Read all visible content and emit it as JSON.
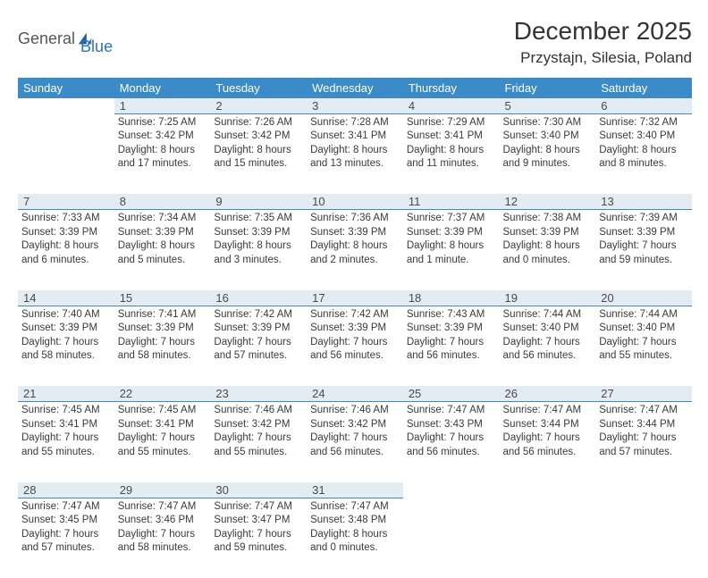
{
  "logo": {
    "part1": "General",
    "part2": "Blue"
  },
  "title": "December 2025",
  "location": "Przystajn, Silesia, Poland",
  "colors": {
    "header_bg": "#3b8bc8",
    "header_text": "#ffffff",
    "daynum_bg": "#e4ecf3",
    "border": "#3b8bc8",
    "logo_accent": "#2d73b8"
  },
  "weekdays": [
    "Sunday",
    "Monday",
    "Tuesday",
    "Wednesday",
    "Thursday",
    "Friday",
    "Saturday"
  ],
  "weeks": [
    {
      "nums": [
        "",
        "1",
        "2",
        "3",
        "4",
        "5",
        "6"
      ],
      "cells": [
        "",
        "Sunrise: 7:25 AM\nSunset: 3:42 PM\nDaylight: 8 hours and 17 minutes.",
        "Sunrise: 7:26 AM\nSunset: 3:42 PM\nDaylight: 8 hours and 15 minutes.",
        "Sunrise: 7:28 AM\nSunset: 3:41 PM\nDaylight: 8 hours and 13 minutes.",
        "Sunrise: 7:29 AM\nSunset: 3:41 PM\nDaylight: 8 hours and 11 minutes.",
        "Sunrise: 7:30 AM\nSunset: 3:40 PM\nDaylight: 8 hours and 9 minutes.",
        "Sunrise: 7:32 AM\nSunset: 3:40 PM\nDaylight: 8 hours and 8 minutes."
      ]
    },
    {
      "nums": [
        "7",
        "8",
        "9",
        "10",
        "11",
        "12",
        "13"
      ],
      "cells": [
        "Sunrise: 7:33 AM\nSunset: 3:39 PM\nDaylight: 8 hours and 6 minutes.",
        "Sunrise: 7:34 AM\nSunset: 3:39 PM\nDaylight: 8 hours and 5 minutes.",
        "Sunrise: 7:35 AM\nSunset: 3:39 PM\nDaylight: 8 hours and 3 minutes.",
        "Sunrise: 7:36 AM\nSunset: 3:39 PM\nDaylight: 8 hours and 2 minutes.",
        "Sunrise: 7:37 AM\nSunset: 3:39 PM\nDaylight: 8 hours and 1 minute.",
        "Sunrise: 7:38 AM\nSunset: 3:39 PM\nDaylight: 8 hours and 0 minutes.",
        "Sunrise: 7:39 AM\nSunset: 3:39 PM\nDaylight: 7 hours and 59 minutes."
      ]
    },
    {
      "nums": [
        "14",
        "15",
        "16",
        "17",
        "18",
        "19",
        "20"
      ],
      "cells": [
        "Sunrise: 7:40 AM\nSunset: 3:39 PM\nDaylight: 7 hours and 58 minutes.",
        "Sunrise: 7:41 AM\nSunset: 3:39 PM\nDaylight: 7 hours and 58 minutes.",
        "Sunrise: 7:42 AM\nSunset: 3:39 PM\nDaylight: 7 hours and 57 minutes.",
        "Sunrise: 7:42 AM\nSunset: 3:39 PM\nDaylight: 7 hours and 56 minutes.",
        "Sunrise: 7:43 AM\nSunset: 3:39 PM\nDaylight: 7 hours and 56 minutes.",
        "Sunrise: 7:44 AM\nSunset: 3:40 PM\nDaylight: 7 hours and 56 minutes.",
        "Sunrise: 7:44 AM\nSunset: 3:40 PM\nDaylight: 7 hours and 55 minutes."
      ]
    },
    {
      "nums": [
        "21",
        "22",
        "23",
        "24",
        "25",
        "26",
        "27"
      ],
      "cells": [
        "Sunrise: 7:45 AM\nSunset: 3:41 PM\nDaylight: 7 hours and 55 minutes.",
        "Sunrise: 7:45 AM\nSunset: 3:41 PM\nDaylight: 7 hours and 55 minutes.",
        "Sunrise: 7:46 AM\nSunset: 3:42 PM\nDaylight: 7 hours and 55 minutes.",
        "Sunrise: 7:46 AM\nSunset: 3:42 PM\nDaylight: 7 hours and 56 minutes.",
        "Sunrise: 7:47 AM\nSunset: 3:43 PM\nDaylight: 7 hours and 56 minutes.",
        "Sunrise: 7:47 AM\nSunset: 3:44 PM\nDaylight: 7 hours and 56 minutes.",
        "Sunrise: 7:47 AM\nSunset: 3:44 PM\nDaylight: 7 hours and 57 minutes."
      ]
    },
    {
      "nums": [
        "28",
        "29",
        "30",
        "31",
        "",
        "",
        ""
      ],
      "cells": [
        "Sunrise: 7:47 AM\nSunset: 3:45 PM\nDaylight: 7 hours and 57 minutes.",
        "Sunrise: 7:47 AM\nSunset: 3:46 PM\nDaylight: 7 hours and 58 minutes.",
        "Sunrise: 7:47 AM\nSunset: 3:47 PM\nDaylight: 7 hours and 59 minutes.",
        "Sunrise: 7:47 AM\nSunset: 3:48 PM\nDaylight: 8 hours and 0 minutes.",
        "",
        "",
        ""
      ]
    }
  ]
}
